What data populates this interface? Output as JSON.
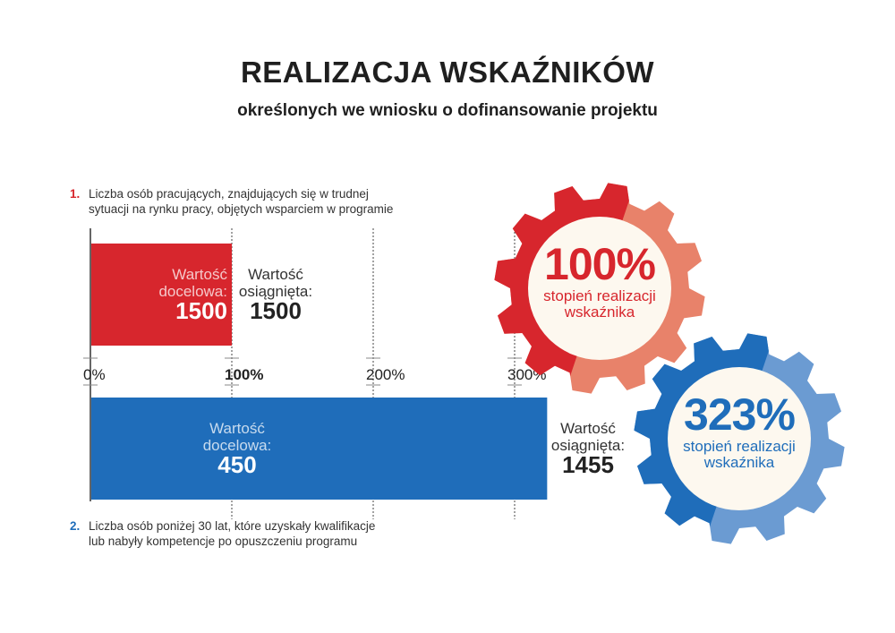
{
  "header": {
    "title": "REALIZACJA WSKAŹNIKÓW",
    "subtitle": "określonych we wniosku o dofinansowanie projektu"
  },
  "indicators": [
    {
      "number": "1.",
      "text_line1": "Liczba osób pracujących, znajdujących się w trudnej",
      "text_line2": "sytuacji na rynku pracy, objętych wsparciem w programie"
    },
    {
      "number": "2.",
      "text_line1": "Liczba osób poniżej 30 lat, które uzyskały kwalifikacje",
      "text_line2": "lub nabyły kompetencje po opuszczeniu programu"
    }
  ],
  "gauges": [
    {
      "percent": "100%",
      "label_line1": "stopień realizacji",
      "label_line2": "wskaźnika",
      "color": "#d7262d"
    },
    {
      "percent": "323%",
      "label_line1": "stopień realizacji",
      "label_line2": "wskaźnika",
      "color": "#1f6dba"
    }
  ],
  "chart_data": {
    "type": "bar",
    "orientation": "horizontal",
    "unit": "%",
    "xlim": [
      0,
      323
    ],
    "ticks": [
      {
        "value": 0,
        "label": "0%",
        "bold": false
      },
      {
        "value": 100,
        "label": "100%",
        "bold": true
      },
      {
        "value": 200,
        "label": "200%",
        "bold": false
      },
      {
        "value": 300,
        "label": "300%",
        "bold": false
      }
    ],
    "bars": [
      {
        "value": 100,
        "color": "#d7262d",
        "target_label_line1": "Wartość",
        "target_label_line2": "docelowa:",
        "target_value": "1500",
        "achieved_label_line1": "Wartość",
        "achieved_label_line2": "osiągnięta:",
        "achieved_value": "1500"
      },
      {
        "value": 323,
        "color": "#1f6dba",
        "target_label_line1": "Wartość",
        "target_label_line2": "docelowa:",
        "target_value": "450",
        "achieved_label_line1": "Wartość",
        "achieved_label_line2": "osiągnięta:",
        "achieved_value": "1455"
      }
    ]
  }
}
